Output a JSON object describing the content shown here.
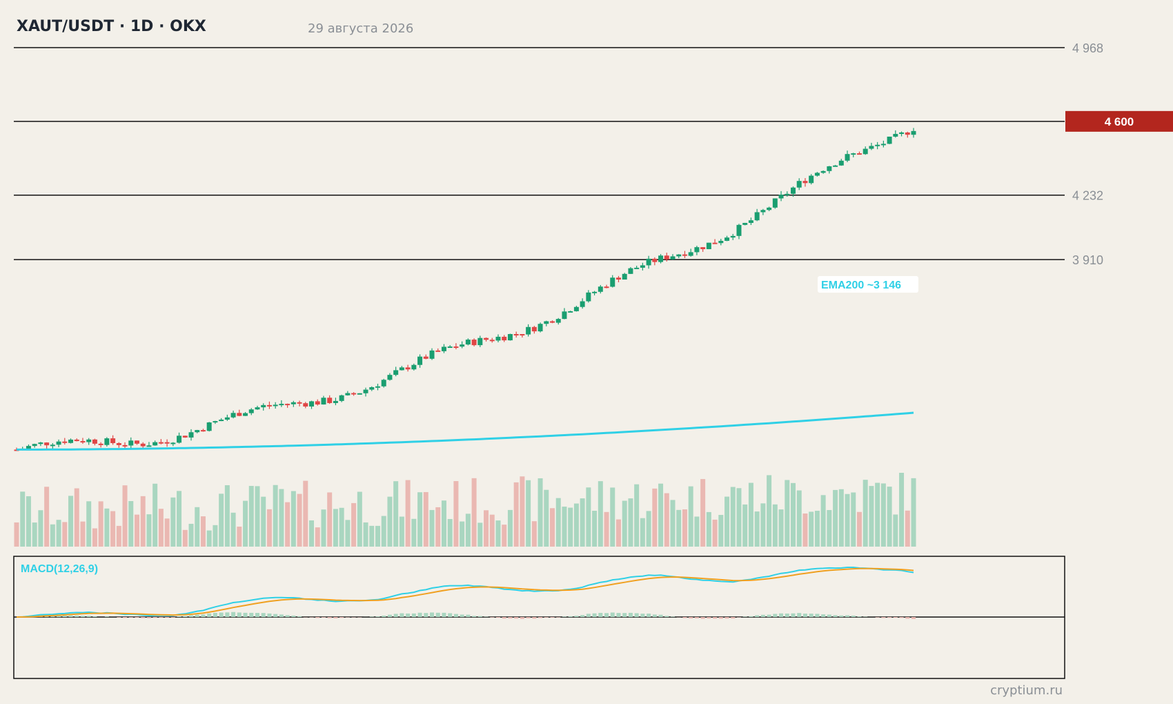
{
  "header": {
    "title": "XAUT/USDT · 1D · OKX",
    "date": "29 августа 2026"
  },
  "watermark": "cryptium.ru",
  "colors": {
    "background": "#f3f0e9",
    "up": "#1a9e70",
    "down": "#e04646",
    "ema": "#2fd0e6",
    "signal": "#f0a020",
    "price_badge": "#b3261e",
    "level_line": "#111111",
    "axis_text": "#8a8f95"
  },
  "chart_data": {
    "type": "candlestick",
    "price_axis": {
      "min": 2960,
      "max": 4968
    },
    "levels": [
      {
        "label": "4 968",
        "value": 4968
      },
      {
        "label": "4 600",
        "value": 4600,
        "current": true
      },
      {
        "label": "4 232",
        "value": 4232
      },
      {
        "label": "3 910",
        "value": 3910
      }
    ],
    "current_price_label": "4 600",
    "ema": {
      "label": "EMA200 ~3 146",
      "start": 2962,
      "end": 3146
    },
    "candles_count": 150,
    "macd": {
      "label": "MACD(12,26,9)",
      "zero_line": true
    }
  }
}
